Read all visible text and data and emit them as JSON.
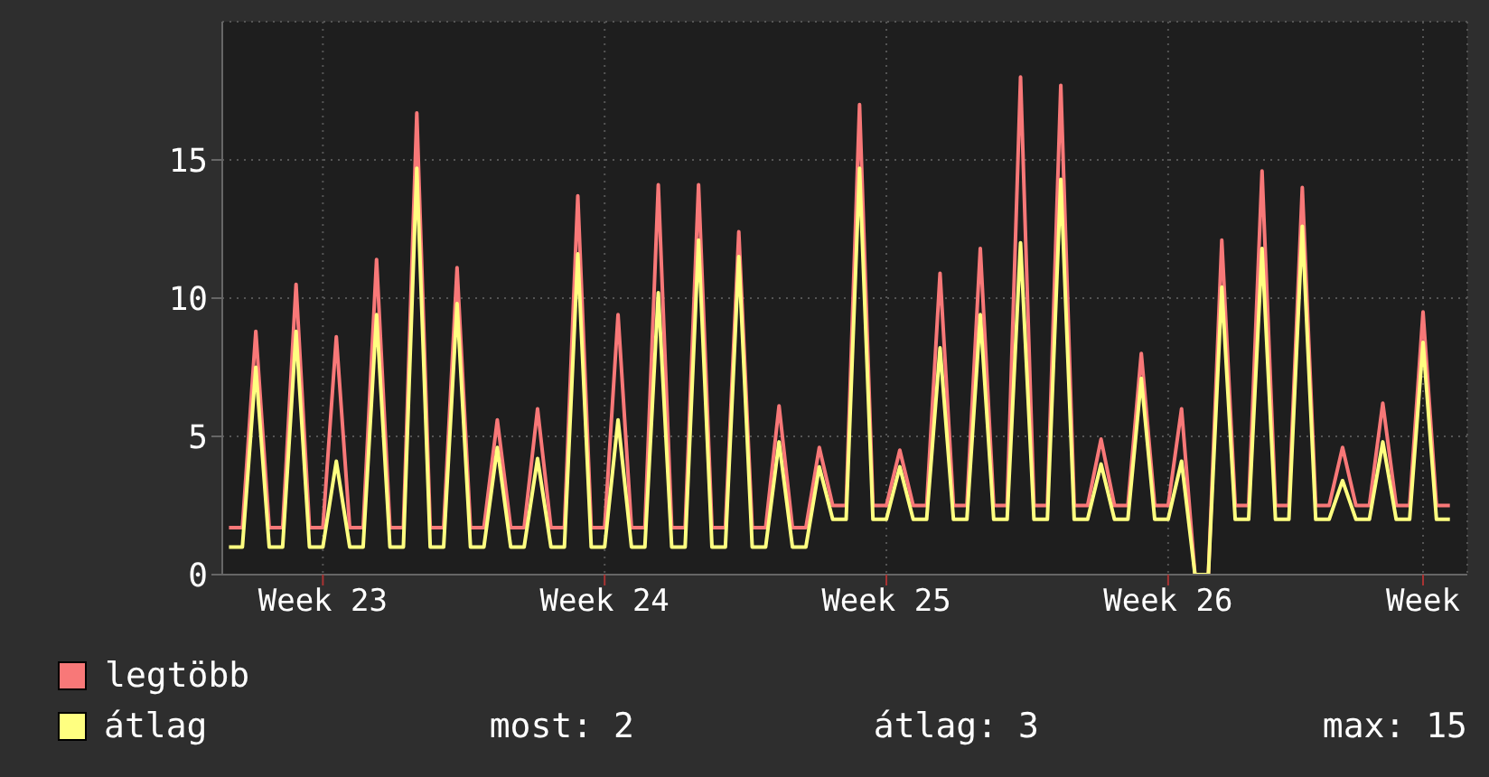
{
  "chart_data": {
    "type": "line",
    "categories": [
      null,
      null,
      null,
      null,
      null,
      null,
      null,
      "Week 23",
      null,
      null,
      null,
      null,
      null,
      null,
      null,
      null,
      null,
      null,
      null,
      null,
      null,
      null,
      null,
      null,
      null,
      null,
      null,
      null,
      "Week 24",
      null,
      null,
      null,
      null,
      null,
      null,
      null,
      null,
      null,
      null,
      null,
      null,
      null,
      null,
      null,
      null,
      null,
      null,
      null,
      null,
      "Week 25",
      null,
      null,
      null,
      null,
      null,
      null,
      null,
      null,
      null,
      null,
      null,
      null,
      null,
      null,
      null,
      null,
      null,
      null,
      null,
      null,
      "Week 26",
      null,
      null,
      null,
      null,
      null,
      null,
      null,
      null,
      null,
      null,
      null,
      null,
      null,
      null,
      null,
      null,
      null,
      null,
      "Week",
      null,
      null
    ],
    "series": [
      {
        "name": "legtöbb",
        "color": "#f87878",
        "values": [
          1.7,
          1.7,
          8.8,
          1.7,
          1.7,
          10.5,
          1.7,
          1.7,
          8.6,
          1.7,
          1.7,
          11.4,
          1.7,
          1.7,
          16.7,
          1.7,
          1.7,
          11.1,
          1.7,
          1.7,
          5.6,
          1.7,
          1.7,
          6.0,
          1.7,
          1.7,
          13.7,
          1.7,
          1.7,
          9.4,
          1.7,
          1.7,
          14.1,
          1.7,
          1.7,
          14.1,
          1.7,
          1.7,
          12.4,
          1.7,
          1.7,
          6.1,
          1.7,
          1.7,
          4.6,
          2.5,
          2.5,
          17.0,
          2.5,
          2.5,
          4.5,
          2.5,
          2.5,
          10.9,
          2.5,
          2.5,
          11.8,
          2.5,
          2.5,
          18.0,
          2.5,
          2.5,
          17.7,
          2.5,
          2.5,
          4.9,
          2.5,
          2.5,
          8.0,
          2.5,
          2.5,
          6.0,
          0,
          0,
          12.1,
          2.5,
          2.5,
          14.6,
          2.5,
          2.5,
          14.0,
          2.5,
          2.5,
          4.6,
          2.5,
          2.5,
          6.2,
          2.5,
          2.5,
          9.5,
          2.5,
          2.5
        ]
      },
      {
        "name": "átlag",
        "color": "#ffff80",
        "values": [
          1.0,
          1.0,
          7.5,
          1.0,
          1.0,
          8.8,
          1.0,
          1.0,
          4.1,
          1.0,
          1.0,
          9.4,
          1.0,
          1.0,
          14.7,
          1.0,
          1.0,
          9.8,
          1.0,
          1.0,
          4.6,
          1.0,
          1.0,
          4.2,
          1.0,
          1.0,
          11.6,
          1.0,
          1.0,
          5.6,
          1.0,
          1.0,
          10.2,
          1.0,
          1.0,
          12.1,
          1.0,
          1.0,
          11.5,
          1.0,
          1.0,
          4.8,
          1.0,
          1.0,
          3.9,
          2.0,
          2.0,
          14.7,
          2.0,
          2.0,
          3.9,
          2.0,
          2.0,
          8.2,
          2.0,
          2.0,
          9.4,
          2.0,
          2.0,
          12.0,
          2.0,
          2.0,
          14.3,
          2.0,
          2.0,
          4.0,
          2.0,
          2.0,
          7.1,
          2.0,
          2.0,
          4.1,
          0,
          0,
          10.4,
          2.0,
          2.0,
          11.8,
          2.0,
          2.0,
          12.6,
          2.0,
          2.0,
          3.4,
          2.0,
          2.0,
          4.8,
          2.0,
          2.0,
          8.4,
          2.0,
          2.0
        ]
      }
    ],
    "ylim": [
      0,
      20
    ],
    "yticks": [
      0,
      5,
      10,
      15
    ],
    "grid": true,
    "legend": "bottom",
    "marker": "none",
    "line_style": "solid",
    "annotations": [
      "most: 2",
      "átlag: 3",
      "max: 15"
    ]
  }
}
